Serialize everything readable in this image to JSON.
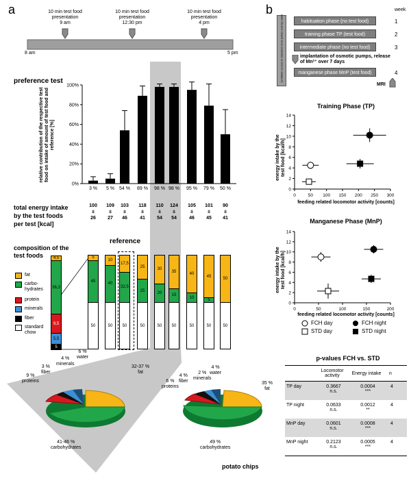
{
  "panel_a": {
    "letter": "a",
    "timeline": {
      "start": "8 am",
      "end": "5 pm",
      "events": [
        {
          "label": "10 min test food presentation",
          "time": "9 am"
        },
        {
          "label": "10 min test food presentation",
          "time": "12:30 pm"
        },
        {
          "label": "10 min test food presentation",
          "time": "4 pm"
        }
      ]
    },
    "preference": {
      "title": "preference test",
      "ylabel": "relative contribution of the respective test food on intake of amount of test food and reference [%]",
      "yticks": [
        "0%",
        "20%",
        "40%",
        "60%",
        "80%",
        "100%"
      ],
      "values": [
        3,
        5,
        54,
        89,
        98,
        98,
        95,
        79,
        50
      ],
      "errors": [
        4,
        5,
        20,
        10,
        3,
        3,
        8,
        22,
        25
      ],
      "labels": [
        "3 %",
        "5 %",
        "54 %",
        "89 %",
        "98 %",
        "98 %",
        "95 %",
        "79 %",
        "50 %"
      ]
    },
    "energy": {
      "title_line1": "total energy intake",
      "title_line2": "by the test foods",
      "title_line3": "per test [kcal]",
      "pm": "±",
      "means": [
        "100",
        "109",
        "103",
        "118",
        "110",
        "124",
        "105",
        "101",
        "90"
      ],
      "sds": [
        "26",
        "27",
        "46",
        "41",
        "54",
        "54",
        "46",
        "45",
        "41"
      ]
    },
    "composition": {
      "title_line1": "composition of the",
      "title_line2": "test foods",
      "reference_label": "reference",
      "legend": [
        {
          "key": "fat",
          "label": "fat",
          "color": "#f7b516"
        },
        {
          "key": "carb",
          "label": "carbo-\nhydrates",
          "color": "#22a64a"
        },
        {
          "key": "protein",
          "label": "protein",
          "color": "#d7191f"
        },
        {
          "key": "minerals",
          "label": "minerals",
          "color": "#3b8fd6"
        },
        {
          "key": "fiber",
          "label": "fiber",
          "color": "#000000"
        },
        {
          "key": "chow",
          "label": "standard\nchow",
          "color": "#ffffff"
        }
      ],
      "chow_bar": {
        "fat_label": "4,5",
        "carb_label": "36,3",
        "protein_label": "9,5",
        "minerals_label": "5,5",
        "fiber_label": "5"
      },
      "bars": [
        {
          "fat": "5",
          "carb": "45",
          "chow": "50"
        },
        {
          "fat": "10",
          "carb": "40",
          "chow": "50"
        },
        {
          "fat": "17,5",
          "carb": "32,5",
          "chow": "50"
        },
        {
          "fat": "25",
          "carb": "25",
          "chow": "50"
        },
        {
          "fat": "30",
          "carb": "20",
          "chow": "50"
        },
        {
          "fat": "35",
          "carb": "15",
          "chow": "50"
        },
        {
          "fat": "40",
          "carb": "10",
          "chow": "50"
        },
        {
          "fat": "45",
          "carb": "5",
          "chow": "50"
        },
        {
          "fat": "50",
          "carb": "",
          "chow": "50"
        }
      ]
    },
    "pie_left": {
      "water": "6 %\nwater",
      "minerals": "4 %\nminerals",
      "fiber": "3 %\nfiber",
      "proteins": "9 %\nproteins",
      "fat": "32-37 %\nfat",
      "carbs": "41-46 %\ncarbohydrates"
    },
    "pie_right": {
      "water": "4 %\nwater",
      "minerals": "2 %\nminerals",
      "fiber": "4 %\nfiber",
      "proteins": "6 %\nproteins",
      "fat": "35 %\nfat",
      "carbs": "49 %\ncarbohydrates",
      "caption": "potato chips"
    }
  },
  "panel_b": {
    "letter": "b",
    "week_label": "week",
    "side_text": "ad libitum access to standard chow pellets and tap water",
    "phases": [
      {
        "label": "habituation phase (no test food)",
        "week": "1"
      },
      {
        "label": "training phase TP (test food)",
        "week": "2"
      },
      {
        "label": "intermediate phase (no test food)",
        "week": "3"
      },
      {
        "label": "manganese phase MnP (test food)",
        "week": "4"
      }
    ],
    "implant_text": "implantation of osmotic pumps, release of Mn²⁺ over 7 days",
    "mri_label": "MRI",
    "chart_training": {
      "title": "Training Phase (TP)",
      "ylabel": "energy intake by the test food [kcal/h]",
      "xlabel": "feeding related locomotor activity [counts]",
      "xticks": [
        "0",
        "50",
        "100",
        "150",
        "200",
        "250",
        "300"
      ],
      "yticks": [
        "0",
        "2",
        "4",
        "6",
        "8",
        "10",
        "12",
        "14"
      ]
    },
    "chart_manganese": {
      "title": "Manganese Phase (MnP)",
      "ylabel": "energy intake by the test food [kcal/h]",
      "xlabel": "feeding related locomotor activity [counts]",
      "xticks": [
        "0",
        "50",
        "100",
        "150",
        "200"
      ],
      "yticks": [
        "0",
        "2",
        "4",
        "6",
        "8",
        "10",
        "12",
        "14"
      ]
    },
    "legend": {
      "fch_day": "FCH day",
      "fch_night": "FCH night",
      "std_day": "STD day",
      "std_night": "STD night"
    },
    "pvalues": {
      "title": "p-values FCH vs. STD",
      "headers": [
        "",
        "Locomotor activity",
        "Energy intake",
        "n"
      ],
      "rows": [
        {
          "name": "TP day",
          "loco": "0.3667",
          "loco_sig": "n.s.",
          "energy": "0.0004",
          "energy_sig": "***",
          "n": "4"
        },
        {
          "name": "TP night",
          "loco": "0.0633",
          "loco_sig": "n.s.",
          "energy": "0.0012",
          "energy_sig": "**",
          "n": "4"
        },
        {
          "name": "MnP day",
          "loco": "0.0601",
          "loco_sig": "n.s.",
          "energy": "0.0008",
          "energy_sig": "***",
          "n": "4"
        },
        {
          "name": "MnP night",
          "loco": "0.2123",
          "loco_sig": "n.s.",
          "energy": "0.0005",
          "energy_sig": "***",
          "n": "4"
        }
      ]
    }
  },
  "chart_data": [
    {
      "type": "bar",
      "title": "preference test",
      "ylabel": "relative contribution of the respective test food on intake of amount of test food and reference [%]",
      "categories": [
        "5",
        "10",
        "17,5",
        "25",
        "30",
        "35",
        "40",
        "45",
        "50"
      ],
      "values": [
        3,
        5,
        54,
        89,
        98,
        98,
        95,
        79,
        50
      ],
      "ylim": [
        0,
        100
      ]
    },
    {
      "type": "scatter",
      "title": "Training Phase (TP)",
      "xlabel": "feeding related locomotor activity [counts]",
      "ylabel": "energy intake by the test food [kcal/h]",
      "xlim": [
        0,
        300
      ],
      "ylim": [
        0,
        14
      ],
      "series": [
        {
          "name": "FCH day",
          "x": [
            50
          ],
          "y": [
            4.5
          ]
        },
        {
          "name": "STD day",
          "x": [
            45
          ],
          "y": [
            1.4
          ]
        },
        {
          "name": "FCH night",
          "x": [
            235
          ],
          "y": [
            10.2
          ]
        },
        {
          "name": "STD night",
          "x": [
            205
          ],
          "y": [
            4.8
          ]
        }
      ]
    },
    {
      "type": "scatter",
      "title": "Manganese Phase (MnP)",
      "xlabel": "feeding related locomotor activity [counts]",
      "ylabel": "energy intake by the test food [kcal/h]",
      "xlim": [
        0,
        200
      ],
      "ylim": [
        0,
        14
      ],
      "series": [
        {
          "name": "FCH day",
          "x": [
            55
          ],
          "y": [
            9
          ]
        },
        {
          "name": "STD day",
          "x": [
            70
          ],
          "y": [
            2.3
          ]
        },
        {
          "name": "FCH night",
          "x": [
            165
          ],
          "y": [
            10.5
          ]
        },
        {
          "name": "STD night",
          "x": [
            160
          ],
          "y": [
            4.7
          ]
        }
      ]
    }
  ]
}
